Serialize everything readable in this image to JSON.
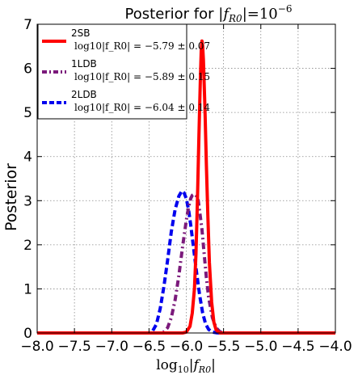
{
  "chart_data": {
    "type": "line",
    "title": "Posterior for |f_R0| = 10^-6",
    "xlabel": "log10|f_R0|",
    "ylabel": "Posterior",
    "xlim": [
      -8.0,
      -4.0
    ],
    "ylim": [
      0,
      7
    ],
    "xticks": [
      "−8.0",
      "−7.5",
      "−7.0",
      "−6.5",
      "−6.0",
      "−5.5",
      "−5.0",
      "−4.5",
      "−4.0"
    ],
    "yticks": [
      "0",
      "1",
      "2",
      "3",
      "4",
      "5",
      "6",
      "7"
    ],
    "grid": true,
    "legend_position": "top-left",
    "series": [
      {
        "name": "2SB",
        "stat": "log10|f_R0| = −5.79 ± 0.07",
        "color": "#ff0000",
        "style": "solid",
        "x": [
          -8.0,
          -6.05,
          -6.0,
          -5.95,
          -5.92,
          -5.89,
          -5.87,
          -5.85,
          -5.83,
          -5.81,
          -5.8,
          -5.79,
          -5.78,
          -5.77,
          -5.75,
          -5.73,
          -5.71,
          -5.69,
          -5.66,
          -5.63,
          -5.6,
          -5.55,
          -4.0
        ],
        "y": [
          0,
          0,
          0.02,
          0.15,
          0.45,
          1.0,
          1.8,
          3.0,
          4.5,
          5.8,
          6.4,
          6.62,
          6.5,
          6.2,
          5.1,
          3.8,
          2.6,
          1.6,
          0.7,
          0.25,
          0.07,
          0,
          0
        ]
      },
      {
        "name": "1LDB",
        "stat": "log10|f_R0| = −5.89 ± 0.15",
        "color": "#7b1a7b",
        "style": "dashdot",
        "x": [
          -8.0,
          -6.35,
          -6.3,
          -6.25,
          -6.2,
          -6.15,
          -6.1,
          -6.05,
          -6.0,
          -5.97,
          -5.94,
          -5.92,
          -5.89,
          -5.86,
          -5.84,
          -5.82,
          -5.79,
          -5.76,
          -5.73,
          -5.7,
          -5.65,
          -5.6,
          -5.55,
          -5.5,
          -4.0
        ],
        "y": [
          0,
          0,
          0.03,
          0.12,
          0.35,
          0.75,
          1.3,
          1.95,
          2.55,
          2.85,
          3.05,
          3.12,
          3.15,
          3.1,
          3.0,
          2.75,
          2.35,
          1.8,
          1.25,
          0.8,
          0.35,
          0.12,
          0.03,
          0,
          0
        ]
      },
      {
        "name": "2LDB",
        "stat": "log10|f_R0| = −6.04 ± 0.14",
        "color": "#0000ee",
        "style": "dashed",
        "x": [
          -8.0,
          -6.5,
          -6.45,
          -6.4,
          -6.35,
          -6.3,
          -6.25,
          -6.2,
          -6.15,
          -6.1,
          -6.06,
          -6.03,
          -6.0,
          -5.97,
          -5.94,
          -5.9,
          -5.86,
          -5.82,
          -5.78,
          -5.74,
          -5.7,
          -5.65,
          -5.6,
          -5.55,
          -4.0
        ],
        "y": [
          0,
          0,
          0.05,
          0.2,
          0.55,
          1.05,
          1.65,
          2.3,
          2.8,
          3.1,
          3.22,
          3.18,
          3.05,
          2.8,
          2.45,
          1.9,
          1.35,
          0.85,
          0.45,
          0.2,
          0.08,
          0.02,
          0.005,
          0,
          0
        ]
      }
    ]
  }
}
